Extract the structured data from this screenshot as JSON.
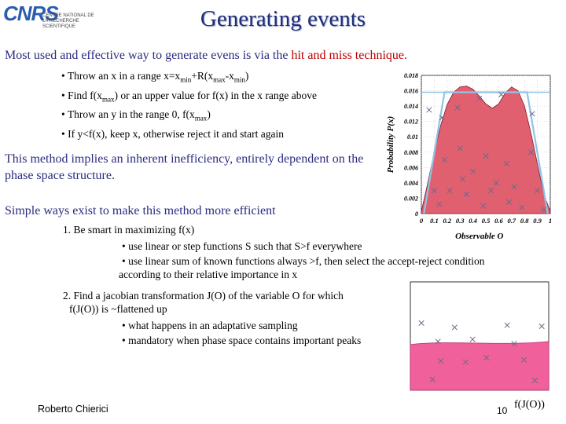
{
  "logo": {
    "name": "CNRS",
    "subtitle": "CENTRE NATIONAL DE LA RECHERCHE SCIENTIFIQUE"
  },
  "title": "Generating events",
  "intro": {
    "text": "Most used and effective way to generate evens is via the ",
    "highlight": "hit and miss technique."
  },
  "bullets": [
    {
      "pre": "• Throw an x in a range x=x",
      "s1": "min",
      "mid": "+R(x",
      "s2": "max",
      "mid2": "-x",
      "s3": "min",
      "post": ")"
    },
    {
      "pre": "• Find f(x",
      "s1": "max",
      "post": ") or an upper value for f(x) in the x range above"
    },
    {
      "pre": "• Throw an y in the range 0, f(x",
      "s1": "max",
      "post": ")"
    },
    {
      "text": "• If y<f(x), keep x, otherwise reject it and start again"
    }
  ],
  "para2": "This method implies an inherent inefficiency, entirely dependent on the phase space structure.",
  "simple": "Simple ways exist to make this method more efficient",
  "item1": "1. Be smart in maximizing f(x)",
  "item1_subs": [
    "• use linear or step functions S such that S>f everywhere",
    "• use linear sum of known functions always >f, then select the accept-reject condition"
  ],
  "item1_sub_cont": "according to their relative importance in x",
  "item2": "2. Find a jacobian transformation J(O) of the variable O for which",
  "item2_cont": "f(J(O)) is ~flattened up",
  "item2_subs": [
    "• what happens in an adaptative sampling",
    "• mandatory when phase space contains important peaks"
  ],
  "author": "Roberto Chierici",
  "page_number": "10",
  "fjo_label": "f(J(O))",
  "chart_data": {
    "type": "area",
    "ylabel": "Probability P(x)",
    "xlabel": "Observable O",
    "xlim": [
      0,
      1
    ],
    "ylim": [
      0,
      0.018
    ],
    "x_ticks": [
      "0",
      "0.1",
      "0.2",
      "0.3",
      "0.4",
      "0.5",
      "0.6",
      "0.7",
      "0.8",
      "0.9",
      "1"
    ],
    "y_ticks": [
      "0",
      "0.002",
      "0.004",
      "0.006",
      "0.008",
      "0.01",
      "0.012",
      "0.014",
      "0.016",
      "0.018"
    ],
    "curve_x": [
      0,
      0.05,
      0.1,
      0.15,
      0.2,
      0.25,
      0.3,
      0.35,
      0.4,
      0.45,
      0.5,
      0.55,
      0.6,
      0.65,
      0.7,
      0.75,
      0.8,
      0.85,
      0.9,
      0.95,
      1
    ],
    "curve_y": [
      0.0003,
      0.004,
      0.008,
      0.0115,
      0.0142,
      0.0158,
      0.0165,
      0.0166,
      0.0162,
      0.0153,
      0.0143,
      0.0137,
      0.0143,
      0.0157,
      0.0165,
      0.016,
      0.014,
      0.0105,
      0.0065,
      0.0025,
      0.0003
    ],
    "bound_x": [
      0.02,
      0.18,
      0.82,
      0.98
    ],
    "bound_y": [
      0.0,
      0.0158,
      0.0158,
      0.0
    ],
    "points_x": [
      0.06,
      0.16,
      0.28,
      0.45,
      0.62,
      0.86,
      0.18,
      0.3,
      0.4,
      0.5,
      0.66,
      0.85,
      0.1,
      0.22,
      0.35,
      0.58,
      0.72,
      0.9,
      0.48,
      0.78,
      0.14,
      0.32,
      0.54,
      0.68,
      0.95
    ],
    "points_y": [
      0.0135,
      0.0125,
      0.0138,
      0.015,
      0.0155,
      0.013,
      0.007,
      0.0085,
      0.0055,
      0.0075,
      0.0065,
      0.008,
      0.003,
      0.003,
      0.0025,
      0.004,
      0.0035,
      0.003,
      0.001,
      0.0008,
      0.0012,
      0.0045,
      0.003,
      0.0015,
      0.0005
    ]
  },
  "chart_data_2": {
    "type": "area",
    "fill_level": 0.45,
    "points_x": [
      0.08,
      0.32,
      0.7,
      0.95,
      0.2,
      0.45,
      0.75,
      0.22,
      0.4,
      0.55,
      0.82,
      0.16,
      0.9
    ],
    "points_y": [
      0.62,
      0.58,
      0.6,
      0.59,
      0.45,
      0.47,
      0.43,
      0.27,
      0.26,
      0.3,
      0.28,
      0.1,
      0.09
    ]
  }
}
